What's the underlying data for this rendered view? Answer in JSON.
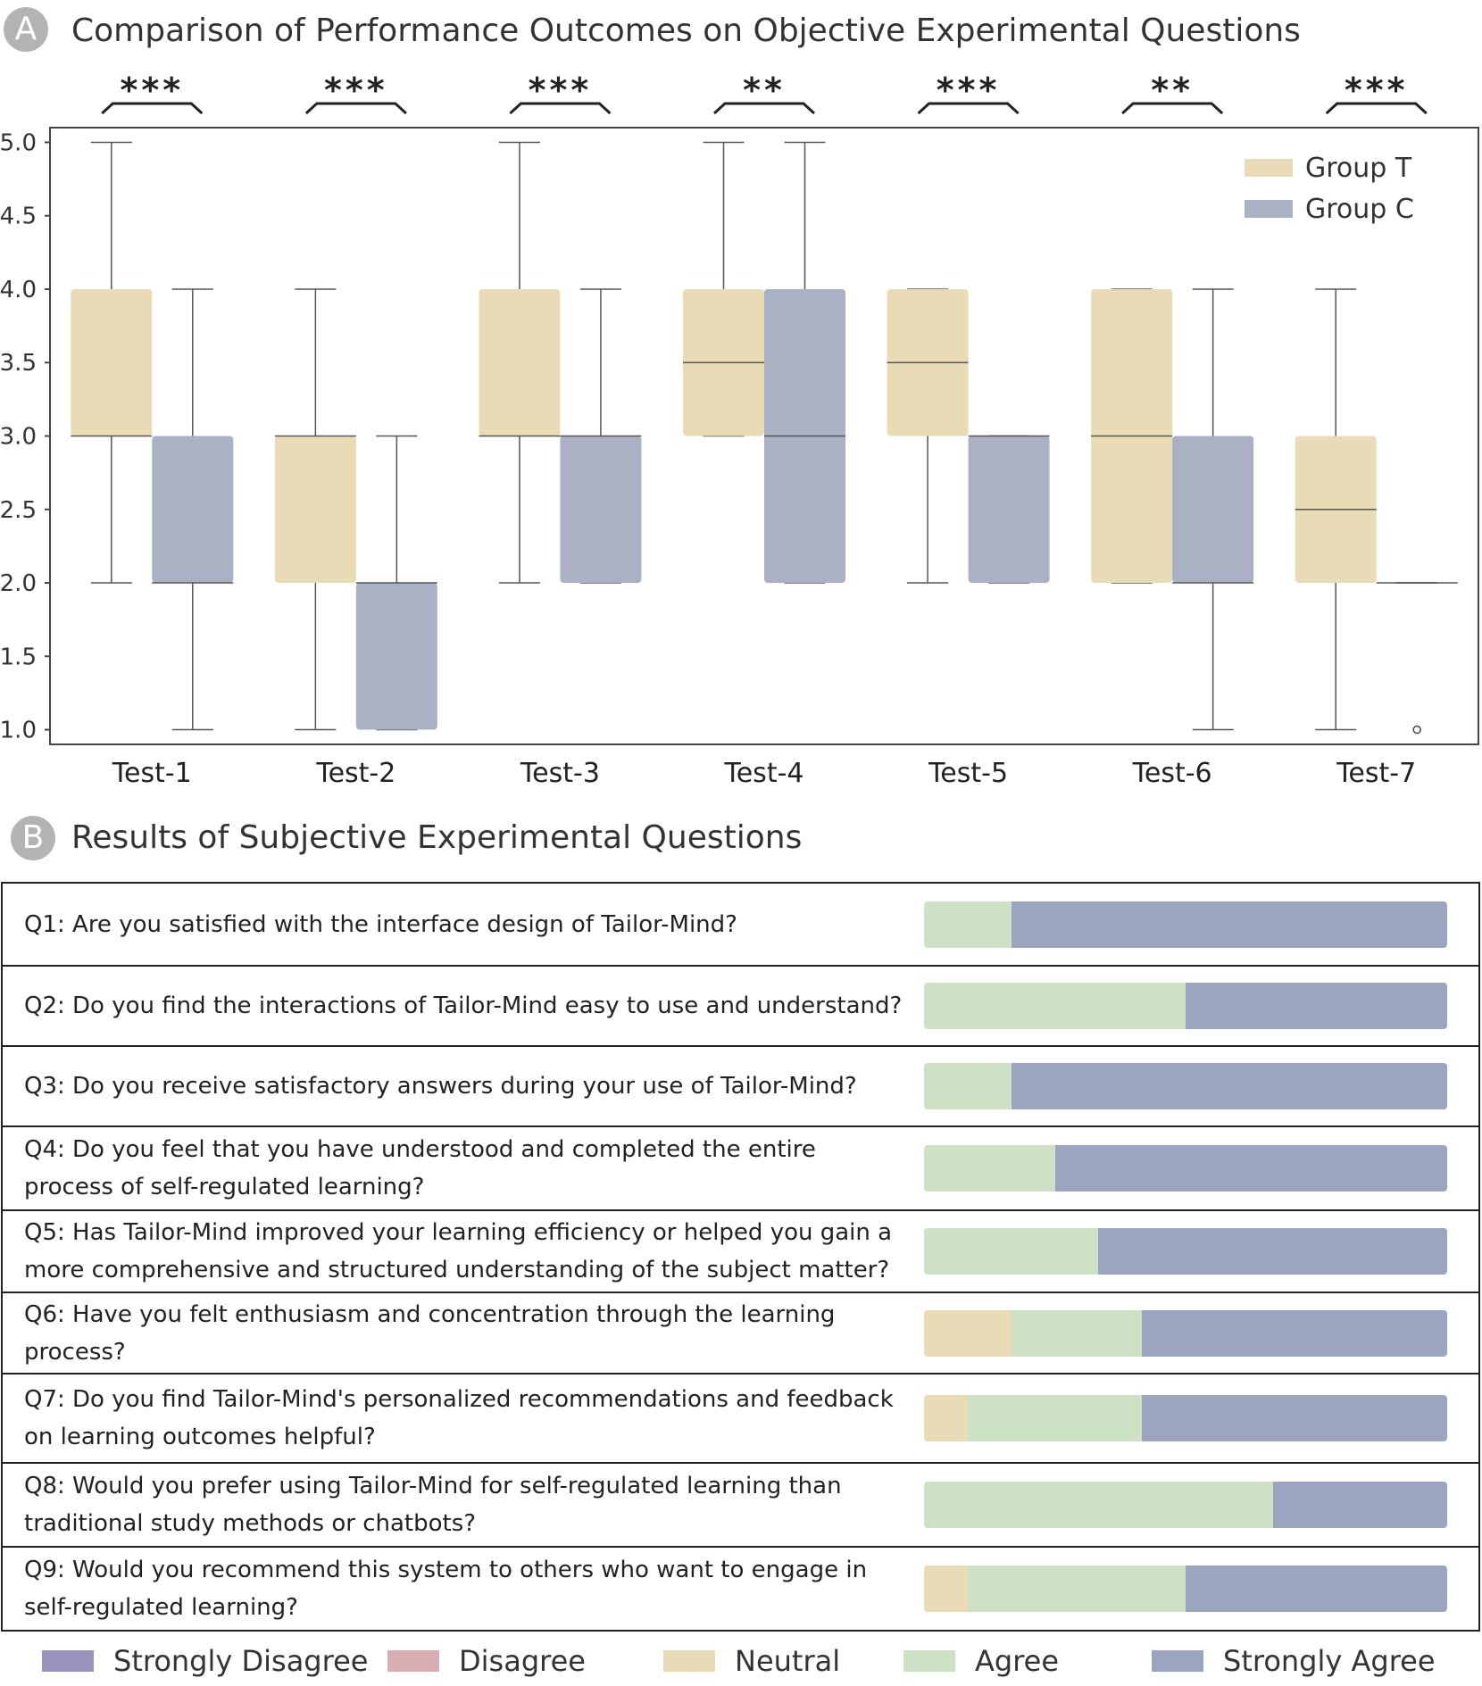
{
  "section_a": {
    "badge": "A",
    "title": "Comparison of Performance Outcomes on Objective Experimental Questions"
  },
  "section_b": {
    "badge": "B",
    "title": "Results of Subjective Experimental Questions"
  },
  "colors": {
    "group_t": "#e8dbb6",
    "group_c": "#aab1c4",
    "strongly_disagree": "#9a92bf",
    "disagree": "#d9aeb3",
    "neutral": "#e8dbb6",
    "agree": "#cde2c5",
    "strongly_agree": "#9ba5bf",
    "line": "#555555"
  },
  "chart_data": [
    {
      "type": "box",
      "categories": [
        "Test-1",
        "Test-2",
        "Test-3",
        "Test-4",
        "Test-5",
        "Test-6",
        "Test-7"
      ],
      "significance": [
        "***",
        "***",
        "***",
        "**",
        "***",
        "**",
        "***"
      ],
      "yticks": [
        "5.0",
        "4.5",
        "4.0",
        "3.5",
        "3.0",
        "2.5",
        "2.0",
        "1.5",
        "1.0"
      ],
      "ylim": [
        0.9,
        5.1
      ],
      "legend_position": "top-right",
      "series": [
        {
          "name": "Group T",
          "boxes": [
            {
              "whislo": 2,
              "q1": 3,
              "med": 3,
              "q3": 4,
              "whishi": 5,
              "fliers": []
            },
            {
              "whislo": 1,
              "q1": 2,
              "med": 3,
              "q3": 3,
              "whishi": 4,
              "fliers": []
            },
            {
              "whislo": 2,
              "q1": 3,
              "med": 3,
              "q3": 4,
              "whishi": 5,
              "fliers": []
            },
            {
              "whislo": 3,
              "q1": 3,
              "med": 3.5,
              "q3": 4,
              "whishi": 5,
              "fliers": []
            },
            {
              "whislo": 2,
              "q1": 3,
              "med": 3.5,
              "q3": 4,
              "whishi": 4,
              "fliers": []
            },
            {
              "whislo": 2,
              "q1": 2,
              "med": 3,
              "q3": 4,
              "whishi": 4,
              "fliers": []
            },
            {
              "whislo": 1,
              "q1": 2,
              "med": 2.5,
              "q3": 3,
              "whishi": 4,
              "fliers": []
            }
          ]
        },
        {
          "name": "Group C",
          "boxes": [
            {
              "whislo": 1,
              "q1": 2,
              "med": 2,
              "q3": 3,
              "whishi": 4,
              "fliers": []
            },
            {
              "whislo": 1,
              "q1": 1,
              "med": 2,
              "q3": 2,
              "whishi": 3,
              "fliers": []
            },
            {
              "whislo": 2,
              "q1": 2,
              "med": 3,
              "q3": 3,
              "whishi": 4,
              "fliers": []
            },
            {
              "whislo": 2,
              "q1": 2,
              "med": 3,
              "q3": 4,
              "whishi": 5,
              "fliers": []
            },
            {
              "whislo": 2,
              "q1": 2,
              "med": 3,
              "q3": 3,
              "whishi": 3,
              "fliers": []
            },
            {
              "whislo": 1,
              "q1": 2,
              "med": 2,
              "q3": 3,
              "whishi": 4,
              "fliers": []
            },
            {
              "whislo": 2,
              "q1": 2,
              "med": 2,
              "q3": 2,
              "whishi": 2,
              "fliers": [
                1
              ]
            }
          ]
        }
      ]
    },
    {
      "type": "bar",
      "stacked": true,
      "orientation": "horizontal",
      "categories": [
        "Q1",
        "Q2",
        "Q3",
        "Q4",
        "Q5",
        "Q6",
        "Q7",
        "Q8",
        "Q9"
      ],
      "questions": [
        "Q1: Are you satisfied with the interface design of Tailor-Mind?",
        "Q2: Do you find the interactions of Tailor-Mind easy to use and understand?",
        "Q3: Do you receive satisfactory answers during your use of Tailor-Mind?",
        "Q4: Do you feel that you have understood and completed the entire process of self-regulated learning?",
        "Q5: Has Tailor-Mind improved your learning efficiency or helped you gain a more comprehensive and structured understanding of the subject matter?",
        "Q6: Have you felt enthusiasm and concentration through the learning process?",
        "Q7: Do you find Tailor-Mind's personalized recommendations and feedback on learning outcomes helpful?",
        "Q8: Would you prefer using Tailor-Mind for self-regulated learning than traditional study methods or chatbots?",
        "Q9: Would you recommend this system to others who want to engage in self-regulated learning?"
      ],
      "series": [
        {
          "name": "Strongly Disagree",
          "values": [
            0,
            0,
            0,
            0,
            0,
            0,
            0,
            0,
            0
          ]
        },
        {
          "name": "Disagree",
          "values": [
            0,
            0,
            0,
            0,
            0,
            0,
            0,
            0,
            0
          ]
        },
        {
          "name": "Neutral",
          "values": [
            0,
            0,
            0,
            0,
            0,
            2,
            1,
            0,
            1
          ]
        },
        {
          "name": "Agree",
          "values": [
            2,
            6,
            2,
            3,
            4,
            3,
            4,
            8,
            5
          ]
        },
        {
          "name": "Strongly Agree",
          "values": [
            10,
            6,
            10,
            9,
            8,
            7,
            7,
            4,
            6
          ]
        }
      ],
      "legend": [
        "Strongly Disagree",
        "Disagree",
        "Neutral",
        "Agree",
        "Strongly Agree"
      ],
      "legend_position": "bottom"
    }
  ]
}
